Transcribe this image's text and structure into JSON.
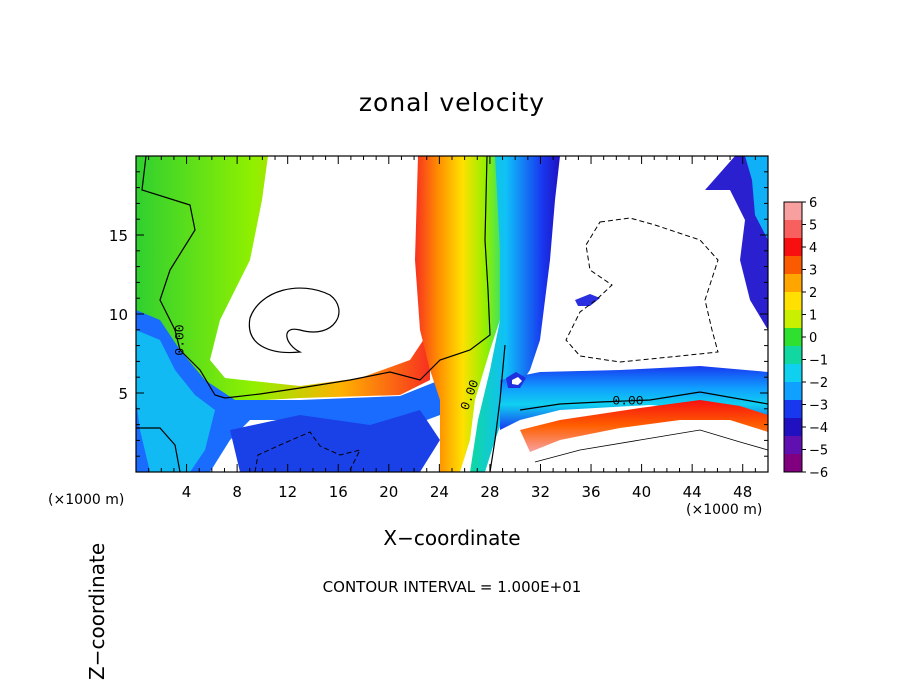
{
  "chart_data": {
    "type": "heatmap",
    "title": "zonal velocity",
    "xlabel": "X−coordinate",
    "ylabel": "Z−coordinate",
    "x_unit_label": "(×1000 m)",
    "x_ticks": [
      4,
      8,
      12,
      16,
      20,
      24,
      28,
      32,
      36,
      40,
      44,
      48
    ],
    "y_ticks": [
      5,
      10,
      15
    ],
    "xlim": [
      0,
      50
    ],
    "ylim": [
      0,
      20
    ],
    "contour_label": "0.00",
    "contour_interval_text": "CONTOUR INTERVAL = 1.000E+01",
    "colorbar": {
      "ticks": [
        "6",
        "5",
        "4",
        "3",
        "2",
        "1",
        "0",
        "−1",
        "−2",
        "−3",
        "−4",
        "−5",
        "−6"
      ],
      "colors": [
        "#f8a0a0",
        "#f86060",
        "#f81010",
        "#fa5a00",
        "#ffa500",
        "#ffe000",
        "#c8f000",
        "#30e030",
        "#10d8a0",
        "#10d0f0",
        "#10a0ff",
        "#1838f0",
        "#2010c0",
        "#6010b0",
        "#800080"
      ]
    },
    "grid": false,
    "legend": "colorbar right"
  }
}
